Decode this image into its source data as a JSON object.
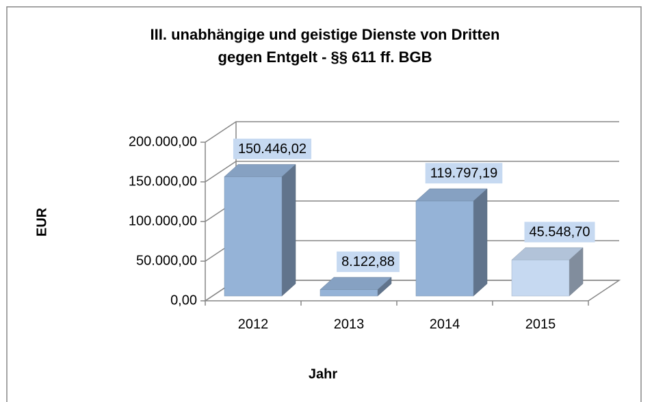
{
  "chart_data": {
    "type": "bar3d",
    "title": [
      "III.  unabhängige und geistige Dienste von Dritten",
      "gegen Entgelt - §§ 611 ff. BGB"
    ],
    "x_label": "Jahr",
    "y_label": "EUR",
    "categories": [
      "2012",
      "2013",
      "2014",
      "2015"
    ],
    "values": [
      150446.02,
      8122.88,
      119797.19,
      45548.7
    ],
    "value_labels": [
      "150.446,02",
      "8.122,88",
      "119.797,19",
      "45.548,70"
    ],
    "colors": [
      "#95b3d7",
      "#95b3d7",
      "#95b3d7",
      "#c6d9f1"
    ],
    "ylim": [
      0,
      200000
    ],
    "yticks": [
      {
        "value": 0,
        "label": "0,00"
      },
      {
        "value": 50000,
        "label": "50.000,00"
      },
      {
        "value": 100000,
        "label": "100.000,00"
      },
      {
        "value": 150000,
        "label": "150.000,00"
      },
      {
        "value": 200000,
        "label": "200.000,00"
      }
    ],
    "grid": true
  }
}
